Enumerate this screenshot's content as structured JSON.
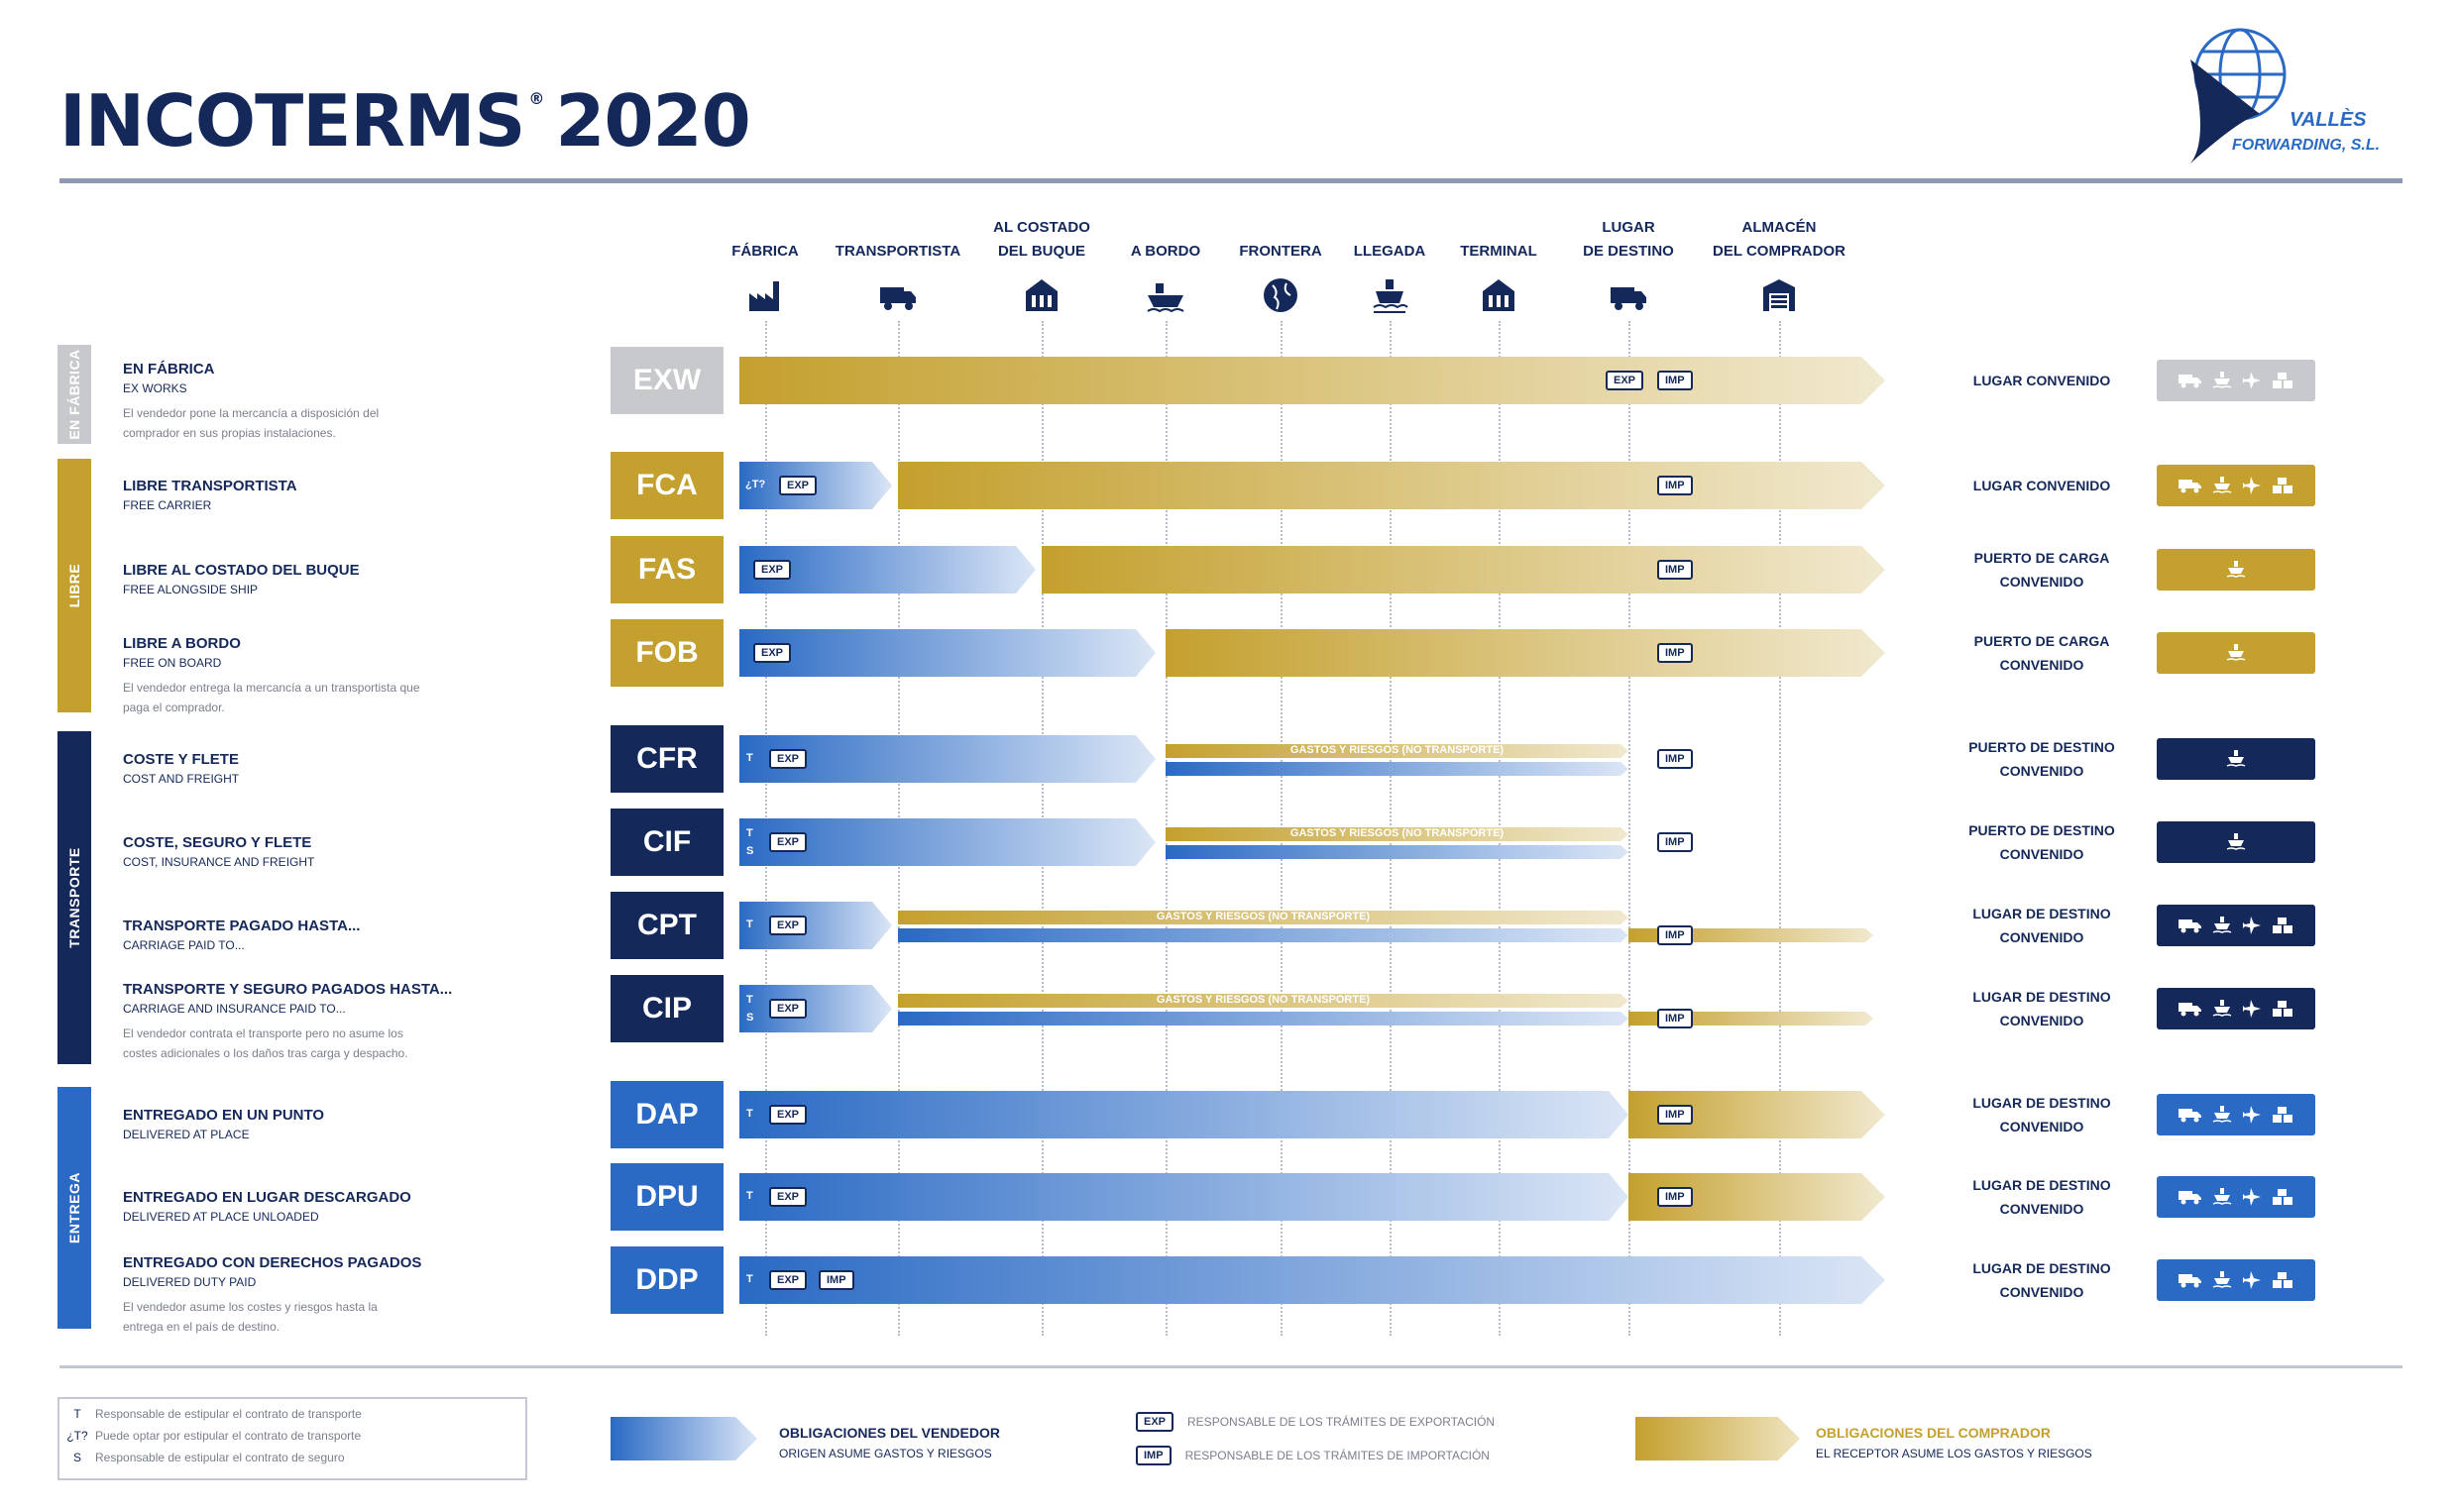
{
  "header": {
    "title_a": "INCOTERMS",
    "title_reg": "®",
    "title_b": "2020"
  },
  "logo": {
    "name": "VALLÈS",
    "sub": "FORWARDING, S.L."
  },
  "columns": [
    {
      "l1": "",
      "l2": "FÁBRICA",
      "icon": "factory-icon"
    },
    {
      "l1": "",
      "l2": "TRANSPORTISTA",
      "icon": "truck-icon"
    },
    {
      "l1": "AL COSTADO",
      "l2": "DEL BUQUE",
      "icon": "port-icon"
    },
    {
      "l1": "",
      "l2": "A BORDO",
      "icon": "ship-icon"
    },
    {
      "l1": "",
      "l2": "FRONTERA",
      "icon": "globe-icon"
    },
    {
      "l1": "",
      "l2": "LLEGADA",
      "icon": "ship-arrival-icon"
    },
    {
      "l1": "",
      "l2": "TERMINAL",
      "icon": "terminal-icon"
    },
    {
      "l1": "LUGAR",
      "l2": "DE DESTINO",
      "icon": "truck-icon"
    },
    {
      "l1": "ALMACÉN",
      "l2": "DEL COMPRADOR",
      "icon": "warehouse-icon"
    }
  ],
  "groups": [
    {
      "label": "EN FÁBRICA",
      "color": "#c8c9cc"
    },
    {
      "label": "LIBRE",
      "color": "#c4a02e"
    },
    {
      "label": "TRANSPORTE",
      "color": "#14285a"
    },
    {
      "label": "ENTREGA",
      "color": "#2a6ac4"
    }
  ],
  "terms": [
    {
      "code": "EXW",
      "title": "EN FÁBRICA",
      "sub": "EX WORKS",
      "desc": "El vendedor pone la mercancía a disposición del comprador en sus propias instalaciones.",
      "place1": "LUGAR CONVENIDO",
      "place2": "",
      "color": "#c8c9cc",
      "modes": "all"
    },
    {
      "code": "FCA",
      "title": "LIBRE TRANSPORTISTA",
      "sub": "FREE CARRIER",
      "desc": "",
      "place1": "LUGAR CONVENIDO",
      "place2": "",
      "color": "#c4a02e",
      "modes": "all"
    },
    {
      "code": "FAS",
      "title": "LIBRE AL COSTADO DEL BUQUE",
      "sub": "FREE ALONGSIDE SHIP",
      "desc": "",
      "place1": "PUERTO DE CARGA",
      "place2": "CONVENIDO",
      "color": "#c4a02e",
      "modes": "sea"
    },
    {
      "code": "FOB",
      "title": "LIBRE A BORDO",
      "sub": "FREE ON BOARD",
      "desc": "El vendedor entrega la mercancía a un transportista que paga el comprador.",
      "place1": "PUERTO DE CARGA",
      "place2": "CONVENIDO",
      "color": "#c4a02e",
      "modes": "sea"
    },
    {
      "code": "CFR",
      "title": "COSTE Y FLETE",
      "sub": "COST AND FREIGHT",
      "desc": "",
      "place1": "PUERTO DE DESTINO",
      "place2": "CONVENIDO",
      "color": "#14285a",
      "modes": "sea"
    },
    {
      "code": "CIF",
      "title": "COSTE, SEGURO Y FLETE",
      "sub": "COST, INSURANCE AND FREIGHT",
      "desc": "",
      "place1": "PUERTO DE DESTINO",
      "place2": "CONVENIDO",
      "color": "#14285a",
      "modes": "sea"
    },
    {
      "code": "CPT",
      "title": "TRANSPORTE PAGADO HASTA...",
      "sub": "CARRIAGE PAID TO...",
      "desc": "",
      "place1": "LUGAR DE DESTINO",
      "place2": "CONVENIDO",
      "color": "#14285a",
      "modes": "all"
    },
    {
      "code": "CIP",
      "title": "TRANSPORTE Y SEGURO PAGADOS HASTA...",
      "sub": "CARRIAGE AND INSURANCE PAID TO...",
      "desc": "El vendedor contrata el transporte pero no asume los costes adicionales o los daños tras carga y despacho.",
      "place1": "LUGAR DE DESTINO",
      "place2": "CONVENIDO",
      "color": "#14285a",
      "modes": "all"
    },
    {
      "code": "DAP",
      "title": "ENTREGADO EN UN PUNTO",
      "sub": "DELIVERED AT PLACE",
      "desc": "",
      "place1": "LUGAR DE DESTINO",
      "place2": "CONVENIDO",
      "color": "#2a6ac4",
      "modes": "all"
    },
    {
      "code": "DPU",
      "title": "ENTREGADO EN LUGAR DESCARGADO",
      "sub": "DELIVERED AT PLACE UNLOADED",
      "desc": "",
      "place1": "LUGAR DE DESTINO",
      "place2": "CONVENIDO",
      "color": "#2a6ac4",
      "modes": "all"
    },
    {
      "code": "DDP",
      "title": "ENTREGADO CON DERECHOS PAGADOS",
      "sub": "DELIVERED DUTY PAID",
      "desc": "El vendedor asume los costes y riesgos hasta la entrega en el país de destino.",
      "place1": "LUGAR DE DESTINO",
      "place2": "CONVENIDO",
      "color": "#2a6ac4",
      "modes": "all"
    }
  ],
  "row_labels": {
    "exp": "EXP",
    "imp": "IMP",
    "t": "T",
    "s": "S",
    "tq": "¿T?",
    "gastos": "GASTOS Y RIESGOS (NO TRANSPORTE)"
  },
  "legend": {
    "t_code": "T",
    "t_text": "Responsable de estipular el contrato de transporte",
    "tq_code": "¿T?",
    "tq_text": "Puede optar por estipular el contrato de transporte",
    "s_code": "S",
    "s_text": "Responsable de estipular el contrato de seguro",
    "seller_title": "OBLIGACIONES DEL VENDEDOR",
    "seller_sub": "ORIGEN ASUME GASTOS Y RIESGOS",
    "exp_code": "EXP",
    "exp_text": "RESPONSABLE DE LOS TRÁMITES DE EXPORTACIÓN",
    "imp_code": "IMP",
    "imp_text": "RESPONSABLE DE LOS TRÁMITES DE IMPORTACIÓN",
    "buyer_title": "OBLIGACIONES DEL COMPRADOR",
    "buyer_sub": "EL RECEPTOR ASUME LOS GASTOS Y RIESGOS"
  },
  "colors": {
    "navy": "#14285a",
    "gold": "#c4a02e",
    "blue": "#2a6ac4",
    "grey": "#c8c9cc"
  }
}
